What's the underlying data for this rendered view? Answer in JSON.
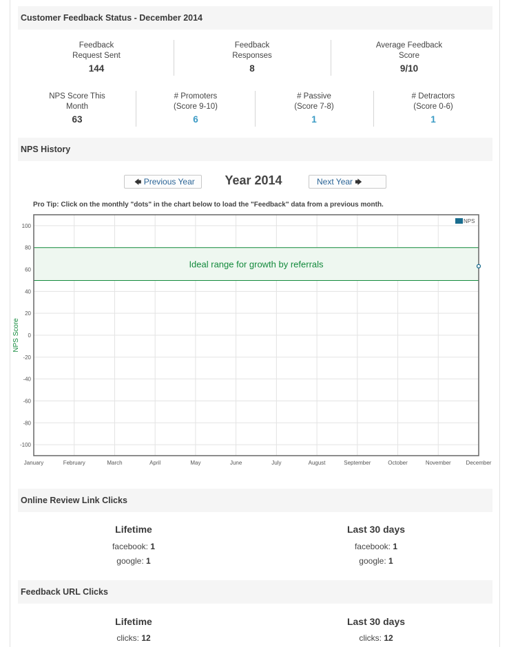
{
  "status": {
    "title": "Customer Feedback Status - December 2014",
    "row1": [
      {
        "label1": "Feedback",
        "label2": "Request Sent",
        "value": "144"
      },
      {
        "label1": "Feedback",
        "label2": "Responses",
        "value": "8"
      },
      {
        "label1": "Average Feedback",
        "label2": "Score",
        "value": "9/10"
      }
    ],
    "row2": [
      {
        "label1": "NPS Score This",
        "label2": "Month",
        "value": "63"
      },
      {
        "label1": "# Promoters",
        "label2": "(Score 9-10)",
        "value": "6"
      },
      {
        "label1": "# Passive",
        "label2": "(Score 7-8)",
        "value": "1"
      },
      {
        "label1": "# Detractors",
        "label2": "(Score 0-6)",
        "value": "1"
      }
    ]
  },
  "history": {
    "title": "NPS History",
    "prev_label": "Previous Year",
    "next_label": "Next Year",
    "year_title": "Year 2014",
    "protip": "Pro Tip: Click on the monthly \"dots\" in the chart below to load the \"Feedback\" data from a previous month."
  },
  "chart_data": {
    "type": "line",
    "ylabel": "NPS Score",
    "xlabel": "",
    "x": [
      "January",
      "February",
      "March",
      "April",
      "May",
      "June",
      "July",
      "August",
      "September",
      "October",
      "November",
      "December"
    ],
    "series": [
      {
        "name": "NPS",
        "values": [
          null,
          null,
          null,
          null,
          null,
          null,
          null,
          null,
          null,
          null,
          null,
          63
        ],
        "color": "#1a6d8f"
      }
    ],
    "ylim": [
      -110,
      110
    ],
    "yticks": [
      100,
      80,
      60,
      40,
      20,
      0,
      -20,
      -40,
      -60,
      -80,
      -100
    ],
    "band": {
      "from": 50,
      "to": 80,
      "label": "Ideal range for growth by referrals",
      "color": "#138a3c"
    },
    "grid": true,
    "legend": "top-right"
  },
  "online_review": {
    "title": "Online Review Link Clicks",
    "lifetime": {
      "heading": "Lifetime",
      "rows": [
        {
          "k": "facebook:",
          "v": "1"
        },
        {
          "k": "google:",
          "v": "1"
        }
      ]
    },
    "last30": {
      "heading": "Last 30 days",
      "rows": [
        {
          "k": "facebook:",
          "v": "1"
        },
        {
          "k": "google:",
          "v": "1"
        }
      ]
    }
  },
  "feedback_url": {
    "title": "Feedback URL Clicks",
    "lifetime": {
      "heading": "Lifetime",
      "rows": [
        {
          "k": "clicks:",
          "v": "12"
        }
      ]
    },
    "last30": {
      "heading": "Last 30 days",
      "rows": [
        {
          "k": "clicks:",
          "v": "12"
        }
      ]
    }
  },
  "icons": {
    "prev": "arrow-left-icon",
    "next": "arrow-right-icon"
  }
}
